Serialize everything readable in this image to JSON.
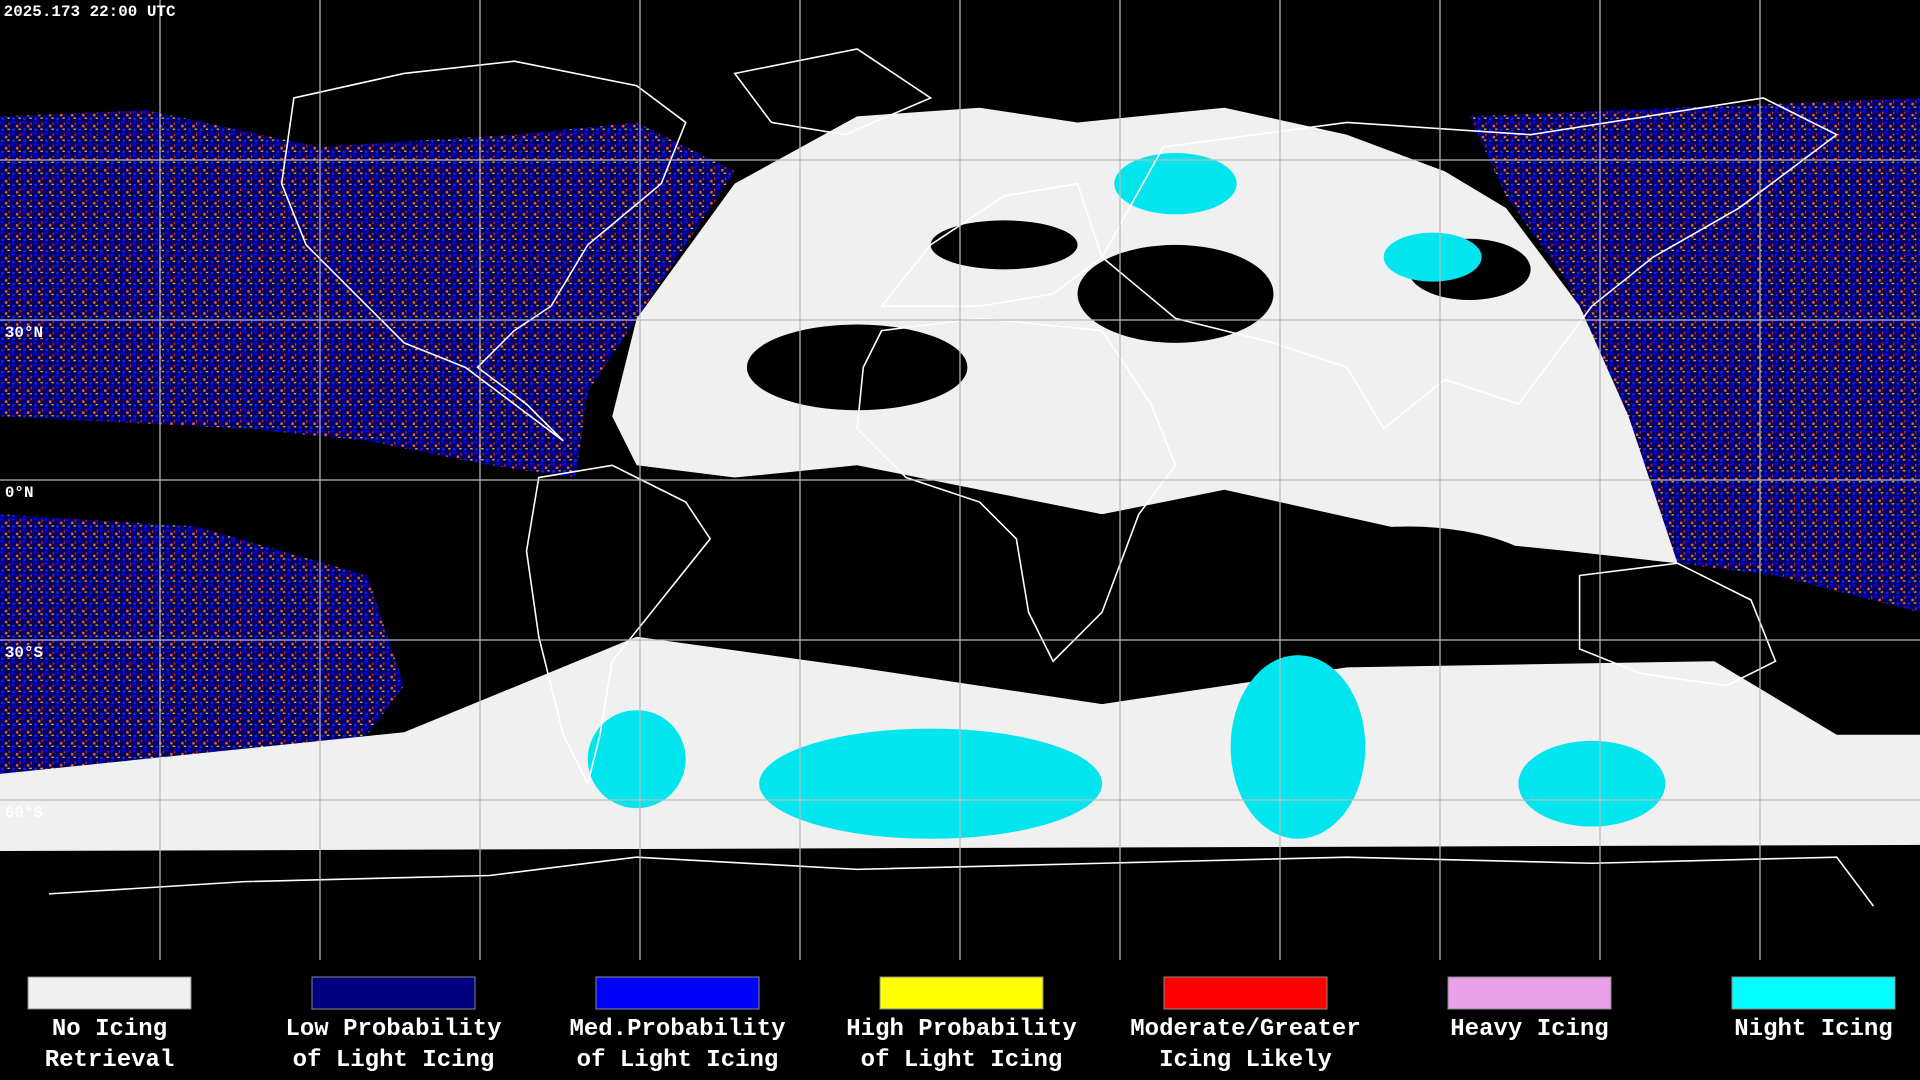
{
  "header": {
    "timestamp": "2025.173 22:00 UTC"
  },
  "grid": {
    "lat_labels": [
      "30°N",
      "0°N",
      "30°S",
      "60°S"
    ]
  },
  "legend": {
    "items": [
      {
        "lines": [
          "No Icing",
          "Retrieval"
        ],
        "color": "#f0f0f0"
      },
      {
        "lines": [
          "Low Probability",
          "of Light Icing"
        ],
        "color": "#000080"
      },
      {
        "lines": [
          "Med.Probability",
          "of Light Icing"
        ],
        "color": "#0000ff"
      },
      {
        "lines": [
          "High Probability",
          "of Light Icing"
        ],
        "color": "#ffff00"
      },
      {
        "lines": [
          "Moderate/Greater",
          "Icing Likely"
        ],
        "color": "#ff0000"
      },
      {
        "lines": [
          "Heavy Icing"
        ],
        "color": "#e8a0e8"
      },
      {
        "lines": [
          "Night Icing"
        ],
        "color": "#00ffff"
      }
    ]
  }
}
